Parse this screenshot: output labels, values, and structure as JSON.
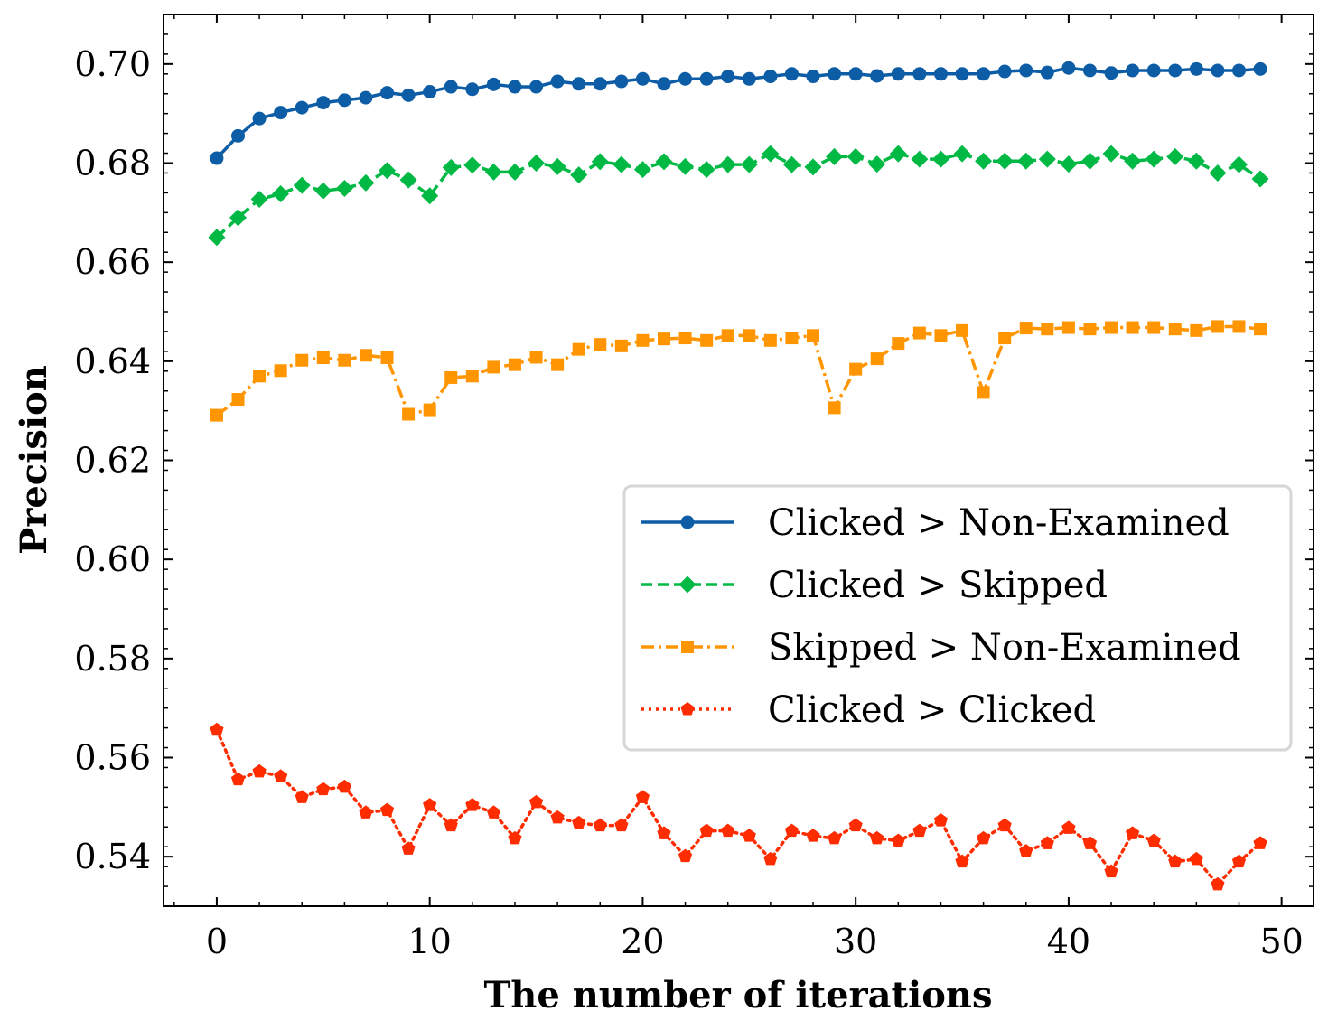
{
  "chart_data": {
    "type": "line",
    "xlabel": "The number of iterations",
    "ylabel": "Precision",
    "xlim": [
      -2.5,
      51.5
    ],
    "ylim": [
      0.53,
      0.71
    ],
    "xticks": [
      0,
      10,
      20,
      30,
      40,
      50
    ],
    "yticks": [
      0.54,
      0.56,
      0.58,
      0.6,
      0.62,
      0.64,
      0.66,
      0.68,
      0.7
    ],
    "grid": false,
    "legend_position": "center-right",
    "x": [
      0,
      1,
      2,
      3,
      4,
      5,
      6,
      7,
      8,
      9,
      10,
      11,
      12,
      13,
      14,
      15,
      16,
      17,
      18,
      19,
      20,
      21,
      22,
      23,
      24,
      25,
      26,
      27,
      28,
      29,
      30,
      31,
      32,
      33,
      34,
      35,
      36,
      37,
      38,
      39,
      40,
      41,
      42,
      43,
      44,
      45,
      46,
      47,
      48,
      49
    ],
    "series": [
      {
        "name": "Clicked > Non-Examined",
        "color": "#0C5DA5",
        "line_style": "solid",
        "marker": "circle",
        "values": [
          0.681,
          0.6855,
          0.689,
          0.6902,
          0.6912,
          0.6922,
          0.6927,
          0.6932,
          0.6942,
          0.6937,
          0.6944,
          0.6954,
          0.6949,
          0.6959,
          0.6954,
          0.6954,
          0.6965,
          0.696,
          0.696,
          0.6965,
          0.697,
          0.696,
          0.697,
          0.697,
          0.6975,
          0.697,
          0.6975,
          0.698,
          0.6975,
          0.698,
          0.698,
          0.6976,
          0.698,
          0.698,
          0.698,
          0.698,
          0.698,
          0.6985,
          0.6987,
          0.6983,
          0.6992,
          0.6987,
          0.6982,
          0.6987,
          0.6987,
          0.6987,
          0.699,
          0.6987,
          0.6987,
          0.699
        ]
      },
      {
        "name": "Clicked > Skipped",
        "color": "#00B945",
        "line_style": "dashed",
        "marker": "diamond",
        "values": [
          0.665,
          0.669,
          0.6727,
          0.6738,
          0.6755,
          0.6744,
          0.6749,
          0.676,
          0.6785,
          0.6766,
          0.6734,
          0.6791,
          0.6796,
          0.6782,
          0.6782,
          0.68,
          0.6793,
          0.6776,
          0.6803,
          0.6797,
          0.6787,
          0.6803,
          0.6793,
          0.6787,
          0.6797,
          0.6797,
          0.6819,
          0.6797,
          0.6792,
          0.6813,
          0.6813,
          0.6798,
          0.6819,
          0.6808,
          0.6808,
          0.6819,
          0.6804,
          0.6804,
          0.6804,
          0.6808,
          0.6798,
          0.6804,
          0.6819,
          0.6804,
          0.6808,
          0.6813,
          0.6804,
          0.678,
          0.6797,
          0.6768
        ]
      },
      {
        "name": "Skipped > Non-Examined",
        "color": "#FF9500",
        "line_style": "dashdot",
        "marker": "square",
        "values": [
          0.6291,
          0.6323,
          0.637,
          0.6381,
          0.6402,
          0.6407,
          0.6402,
          0.6412,
          0.6407,
          0.6293,
          0.6302,
          0.6367,
          0.637,
          0.6388,
          0.6393,
          0.6408,
          0.6393,
          0.6424,
          0.6434,
          0.6431,
          0.6442,
          0.6445,
          0.6447,
          0.6442,
          0.6452,
          0.6452,
          0.6442,
          0.6447,
          0.6452,
          0.6306,
          0.6384,
          0.6405,
          0.6436,
          0.6457,
          0.6452,
          0.6462,
          0.6337,
          0.6447,
          0.6467,
          0.6465,
          0.6468,
          0.6465,
          0.6468,
          0.6468,
          0.6468,
          0.6465,
          0.6462,
          0.647,
          0.647,
          0.6465
        ]
      },
      {
        "name": "Clicked > Clicked",
        "color": "#FF2C00",
        "line_style": "dotted",
        "marker": "pentagon",
        "values": [
          0.5656,
          0.5556,
          0.5572,
          0.5562,
          0.552,
          0.5536,
          0.5541,
          0.5489,
          0.5494,
          0.5416,
          0.5504,
          0.5463,
          0.5504,
          0.5489,
          0.5437,
          0.551,
          0.5479,
          0.5468,
          0.5463,
          0.5463,
          0.552,
          0.5447,
          0.5401,
          0.5452,
          0.5452,
          0.5442,
          0.5395,
          0.5452,
          0.5442,
          0.5437,
          0.5463,
          0.5437,
          0.5432,
          0.5452,
          0.5473,
          0.539,
          0.5437,
          0.5463,
          0.5411,
          0.5427,
          0.5458,
          0.5427,
          0.537,
          0.5447,
          0.5432,
          0.539,
          0.5395,
          0.5344,
          0.539,
          0.5427
        ]
      }
    ]
  }
}
